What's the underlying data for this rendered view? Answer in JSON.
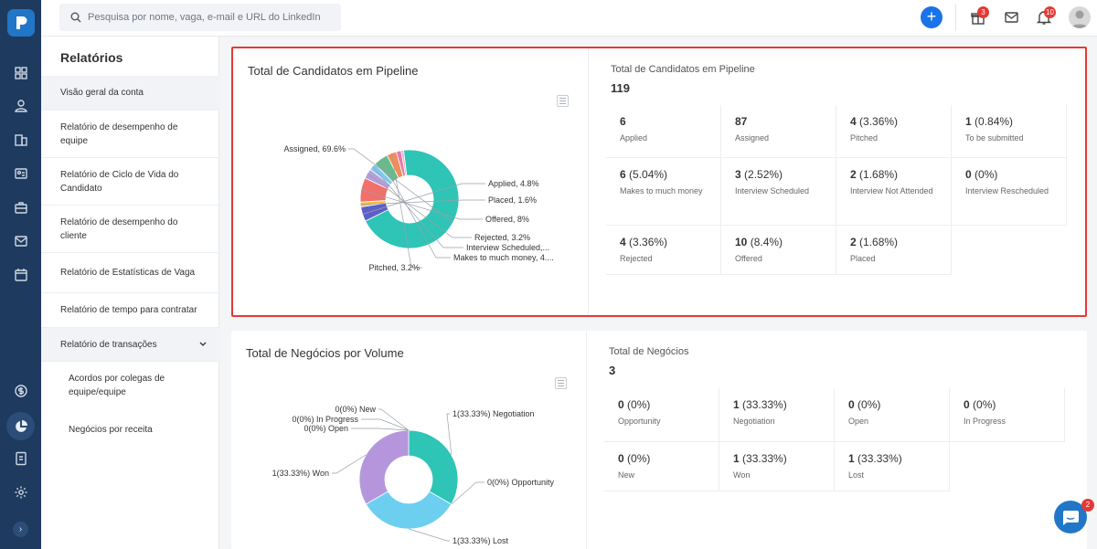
{
  "search": {
    "placeholder": "Pesquisa por nome, vaga, e-mail e URL do LinkedIn"
  },
  "topbar": {
    "gift_badge": "3",
    "bell_badge": "10"
  },
  "sidebar": {
    "title": "Relatórios",
    "items": [
      {
        "label": "Visão geral da conta"
      },
      {
        "label": "Relatório de desempenho de equipe"
      },
      {
        "label": "Relatório de Ciclo de Vida do Candidato"
      },
      {
        "label": "Relatório de desempenho do cliente"
      },
      {
        "label": "Relatório de Estatísticas de Vaga"
      },
      {
        "label": "Relatório de tempo para contratar"
      },
      {
        "label": "Relatório de transações"
      }
    ],
    "subitems": [
      {
        "label": "Acordos por colegas de equipe/equipe"
      },
      {
        "label": "Negócios por receita"
      }
    ]
  },
  "pipeline": {
    "title": "Total de Candidatos em Pipeline",
    "summary_title": "Total de Candidatos em Pipeline",
    "total": "119",
    "stats": [
      {
        "num": "6",
        "pct": "",
        "label": "Applied"
      },
      {
        "num": "87",
        "pct": "",
        "label": "Assigned"
      },
      {
        "num": "4",
        "pct": "(3.36%)",
        "label": "Pitched"
      },
      {
        "num": "1",
        "pct": "(0.84%)",
        "label": "To be submitted"
      },
      {
        "num": "6",
        "pct": "(5.04%)",
        "label": "Makes to much money"
      },
      {
        "num": "3",
        "pct": "(2.52%)",
        "label": "Interview Scheduled"
      },
      {
        "num": "2",
        "pct": "(1.68%)",
        "label": "Interview Not Attended"
      },
      {
        "num": "0",
        "pct": "(0%)",
        "label": "Interview Rescheduled"
      },
      {
        "num": "4",
        "pct": "(3.36%)",
        "label": "Rejected"
      },
      {
        "num": "10",
        "pct": "(8.4%)",
        "label": "Offered"
      },
      {
        "num": "2",
        "pct": "(1.68%)",
        "label": "Placed"
      }
    ],
    "chart_data": {
      "type": "pie",
      "title": "Total de Candidatos em Pipeline",
      "series": [
        {
          "name": "Assigned",
          "value": 69.6,
          "label": "Assigned, 69.6%",
          "color": "#2ec4b6"
        },
        {
          "name": "Applied",
          "value": 4.8,
          "label": "Applied, 4.8%",
          "color": "#5b5fc7"
        },
        {
          "name": "Placed",
          "value": 1.6,
          "label": "Placed, 1.6%",
          "color": "#f5c242"
        },
        {
          "name": "Offered",
          "value": 8,
          "label": "Offered, 8%",
          "color": "#f0706a"
        },
        {
          "name": "Rejected",
          "value": 3.2,
          "label": "Rejected, 3.2%",
          "color": "#b39ddb"
        },
        {
          "name": "Interview Scheduled",
          "value": 2.4,
          "label": "Interview Scheduled,...",
          "color": "#7ec8f0"
        },
        {
          "name": "Makes to much money",
          "value": 4.8,
          "label": "Makes to much money, 4....",
          "color": "#66bb8a"
        },
        {
          "name": "Pitched",
          "value": 3.2,
          "label": "Pitched, 3.2%",
          "color": "#f28c5a"
        },
        {
          "name": "Interview Not Attended",
          "value": 1.6,
          "label": "",
          "color": "#e57cab"
        },
        {
          "name": "To be submitted",
          "value": 0.8,
          "label": "",
          "color": "#f3a9c6"
        }
      ]
    }
  },
  "deals": {
    "title": "Total de Negócios por Volume",
    "summary_title": "Total de Negócios",
    "total": "3",
    "stats": [
      {
        "num": "0",
        "pct": "(0%)",
        "label": "Opportunity"
      },
      {
        "num": "1",
        "pct": "(33.33%)",
        "label": "Negotiation"
      },
      {
        "num": "0",
        "pct": "(0%)",
        "label": "Open"
      },
      {
        "num": "0",
        "pct": "(0%)",
        "label": "In Progress"
      },
      {
        "num": "0",
        "pct": "(0%)",
        "label": "New"
      },
      {
        "num": "1",
        "pct": "(33.33%)",
        "label": "Won"
      },
      {
        "num": "1",
        "pct": "(33.33%)",
        "label": "Lost"
      }
    ],
    "chart_data": {
      "type": "pie",
      "title": "Total de Negócios por Volume",
      "series": [
        {
          "name": "Negotiation",
          "value": 33.33,
          "label": "1(33.33%) Negotiation",
          "color": "#2ec4b6"
        },
        {
          "name": "Opportunity",
          "value": 0,
          "label": "0(0%) Opportunity",
          "color": "#f5c242"
        },
        {
          "name": "Lost",
          "value": 33.33,
          "label": "1(33.33%) Lost",
          "color": "#6ccff0"
        },
        {
          "name": "Won",
          "value": 33.33,
          "label": "1(33.33%) Won",
          "color": "#b596dd"
        },
        {
          "name": "Open",
          "value": 0,
          "label": "0(0%) Open",
          "color": "#5b5fc7"
        },
        {
          "name": "In Progress",
          "value": 0,
          "label": "0(0%) In Progress",
          "color": "#f0706a"
        },
        {
          "name": "New",
          "value": 0,
          "label": "0(0%) New",
          "color": "#66bb8a"
        }
      ]
    }
  },
  "chat": {
    "badge": "2"
  }
}
